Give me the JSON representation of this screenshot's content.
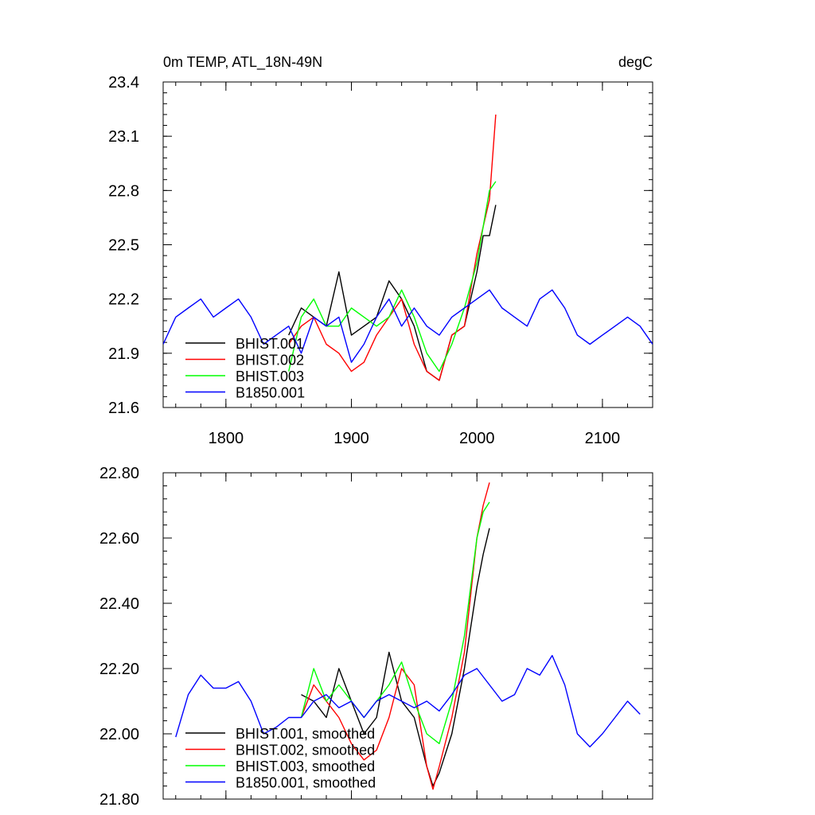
{
  "chart_data": [
    {
      "type": "line",
      "title": "0m TEMP, ATL_18N-49N",
      "units": "degC",
      "xlim": [
        1750,
        2140
      ],
      "ylim": [
        21.6,
        23.4
      ],
      "xticks": [
        1800,
        1900,
        2000,
        2100
      ],
      "yticks": [
        21.6,
        21.9,
        22.2,
        22.5,
        22.8,
        23.1,
        23.4
      ],
      "ytick_labels": [
        "21.6",
        "21.9",
        "22.2",
        "22.5",
        "22.8",
        "23.1",
        "23.4"
      ],
      "legend_placement": "bottom-left",
      "series": [
        {
          "name": "BHIST.001",
          "color": "#000000",
          "x": [
            1850,
            1860,
            1870,
            1880,
            1890,
            1900,
            1910,
            1920,
            1930,
            1940,
            1950,
            1960,
            1970,
            1980,
            1990,
            2000,
            2005,
            2010,
            2015
          ],
          "y": [
            22.0,
            22.15,
            22.1,
            22.05,
            22.35,
            22.0,
            22.05,
            22.1,
            22.3,
            22.2,
            22.05,
            21.8,
            21.75,
            22.0,
            22.05,
            22.35,
            22.55,
            22.55,
            22.72
          ]
        },
        {
          "name": "BHIST.002",
          "color": "#ff0000",
          "x": [
            1850,
            1860,
            1870,
            1880,
            1890,
            1900,
            1910,
            1920,
            1930,
            1940,
            1950,
            1960,
            1970,
            1980,
            1990,
            2000,
            2005,
            2010,
            2015
          ],
          "y": [
            21.95,
            22.05,
            22.1,
            21.95,
            21.9,
            21.8,
            21.85,
            22.0,
            22.1,
            22.2,
            21.95,
            21.8,
            21.75,
            22.0,
            22.05,
            22.45,
            22.6,
            22.75,
            23.22
          ]
        },
        {
          "name": "BHIST.003",
          "color": "#00ff00",
          "x": [
            1850,
            1860,
            1870,
            1880,
            1890,
            1900,
            1910,
            1920,
            1930,
            1940,
            1950,
            1960,
            1970,
            1980,
            1990,
            2000,
            2005,
            2010,
            2015
          ],
          "y": [
            21.8,
            22.1,
            22.2,
            22.05,
            22.05,
            22.15,
            22.1,
            22.05,
            22.1,
            22.25,
            22.1,
            21.9,
            21.8,
            21.95,
            22.15,
            22.4,
            22.6,
            22.8,
            22.85
          ]
        },
        {
          "name": "B1850.001",
          "color": "#0000ff",
          "x": [
            1750,
            1760,
            1770,
            1780,
            1790,
            1800,
            1810,
            1820,
            1830,
            1840,
            1850,
            1860,
            1870,
            1880,
            1890,
            1900,
            1910,
            1920,
            1930,
            1940,
            1950,
            1960,
            1970,
            1980,
            1990,
            2000,
            2010,
            2020,
            2030,
            2040,
            2050,
            2060,
            2070,
            2080,
            2090,
            2100,
            2110,
            2120,
            2130,
            2140
          ],
          "y": [
            21.95,
            22.1,
            22.15,
            22.2,
            22.1,
            22.15,
            22.2,
            22.1,
            21.95,
            22.0,
            22.05,
            21.9,
            22.1,
            22.05,
            22.1,
            21.85,
            21.95,
            22.1,
            22.2,
            22.05,
            22.15,
            22.05,
            22.0,
            22.1,
            22.15,
            22.2,
            22.25,
            22.15,
            22.1,
            22.05,
            22.2,
            22.25,
            22.15,
            22.0,
            21.95,
            22.0,
            22.05,
            22.1,
            22.05,
            21.95
          ]
        }
      ]
    },
    {
      "type": "line",
      "xlim": [
        1750,
        2140
      ],
      "ylim": [
        21.8,
        22.8
      ],
      "xticks": [
        1800,
        1900,
        2000,
        2100
      ],
      "yticks": [
        21.8,
        22.0,
        22.2,
        22.4,
        22.6,
        22.8
      ],
      "ytick_labels": [
        "21.80",
        "22.00",
        "22.20",
        "22.40",
        "22.60",
        "22.80"
      ],
      "legend_placement": "bottom-left",
      "series": [
        {
          "name": "BHIST.001, smoothed",
          "color": "#000000",
          "x": [
            1860,
            1870,
            1880,
            1890,
            1900,
            1910,
            1920,
            1930,
            1940,
            1950,
            1960,
            1965,
            1970,
            1980,
            1990,
            2000,
            2005,
            2010
          ],
          "y": [
            22.12,
            22.1,
            22.05,
            22.2,
            22.1,
            22.0,
            22.05,
            22.25,
            22.1,
            22.05,
            21.9,
            21.84,
            21.88,
            22.0,
            22.2,
            22.45,
            22.55,
            22.63
          ]
        },
        {
          "name": "BHIST.002, smoothed",
          "color": "#ff0000",
          "x": [
            1860,
            1870,
            1880,
            1890,
            1900,
            1910,
            1920,
            1930,
            1940,
            1950,
            1960,
            1965,
            1970,
            1980,
            1990,
            2000,
            2005,
            2010
          ],
          "y": [
            22.05,
            22.15,
            22.1,
            22.05,
            21.97,
            21.92,
            21.95,
            22.05,
            22.2,
            22.15,
            21.9,
            21.83,
            21.9,
            22.05,
            22.25,
            22.6,
            22.7,
            22.77
          ]
        },
        {
          "name": "BHIST.003, smoothed",
          "color": "#00ff00",
          "x": [
            1860,
            1870,
            1880,
            1890,
            1900,
            1910,
            1920,
            1930,
            1940,
            1950,
            1960,
            1970,
            1980,
            1990,
            2000,
            2005,
            2010
          ],
          "y": [
            22.05,
            22.2,
            22.1,
            22.15,
            22.1,
            22.05,
            22.1,
            22.15,
            22.22,
            22.1,
            22.0,
            21.97,
            22.1,
            22.3,
            22.6,
            22.68,
            22.71
          ]
        },
        {
          "name": "B1850.001, smoothed",
          "color": "#0000ff",
          "x": [
            1760,
            1770,
            1780,
            1790,
            1800,
            1810,
            1820,
            1830,
            1840,
            1850,
            1860,
            1870,
            1880,
            1890,
            1900,
            1910,
            1920,
            1930,
            1940,
            1950,
            1960,
            1970,
            1980,
            1990,
            2000,
            2010,
            2020,
            2030,
            2040,
            2050,
            2060,
            2070,
            2080,
            2090,
            2100,
            2110,
            2120,
            2130
          ],
          "y": [
            21.99,
            22.12,
            22.18,
            22.14,
            22.14,
            22.16,
            22.1,
            22.0,
            22.02,
            22.05,
            22.05,
            22.1,
            22.12,
            22.08,
            22.1,
            22.05,
            22.1,
            22.12,
            22.1,
            22.08,
            22.1,
            22.07,
            22.12,
            22.18,
            22.2,
            22.15,
            22.1,
            22.12,
            22.2,
            22.18,
            22.24,
            22.15,
            22.0,
            21.96,
            22.0,
            22.05,
            22.1,
            22.06
          ]
        }
      ]
    }
  ]
}
